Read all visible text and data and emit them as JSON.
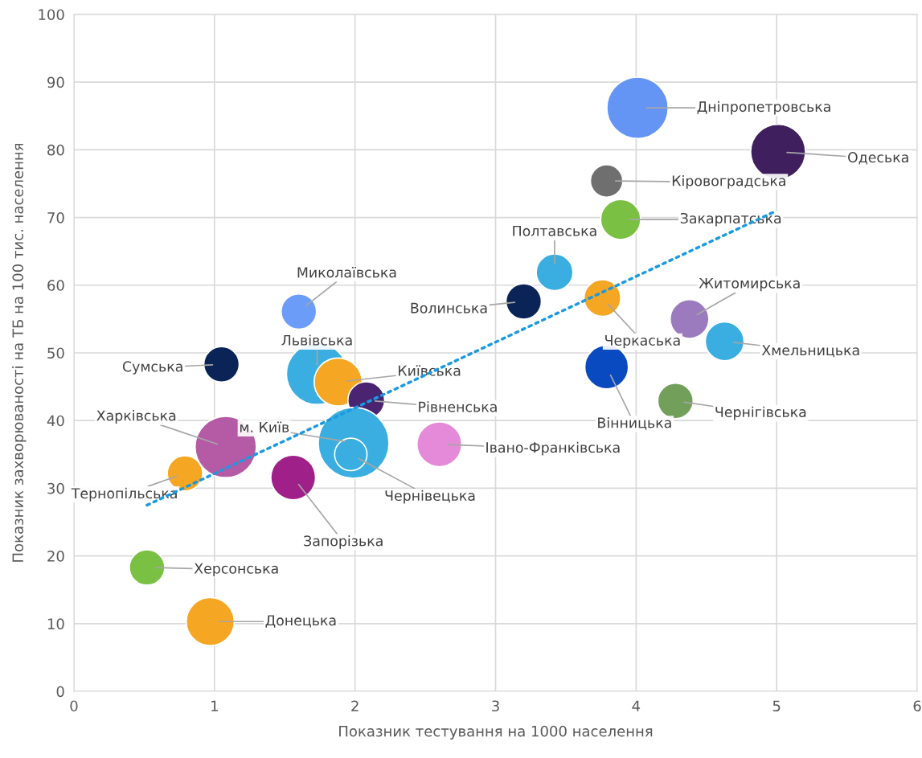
{
  "chart_data": {
    "type": "bubble",
    "xlabel": "Показник тестування на 1000 населення",
    "ylabel": "Показник захворюваності на ТБ на 100 тис. населення",
    "xlim": [
      0,
      6
    ],
    "xticks": [
      0,
      1,
      2,
      3,
      4,
      5,
      6
    ],
    "ylim": [
      0,
      100
    ],
    "yticks": [
      0,
      10,
      20,
      30,
      40,
      50,
      60,
      70,
      80,
      90,
      100
    ],
    "grid": true,
    "legend": false,
    "series": [
      {
        "name": "Дніпропетровська",
        "color": "#6495f5",
        "x": [
          4.01
        ],
        "values": [
          86.2
        ],
        "sizes": [
          0.75
        ]
      },
      {
        "name": "Одеська",
        "color": "#3f1f5e",
        "x": [
          5.01
        ],
        "values": [
          79.7
        ],
        "sizes": [
          0.6
        ]
      },
      {
        "name": "Кіровоградська",
        "color": "#6f6f6f",
        "x": [
          3.79
        ],
        "values": [
          75.4
        ],
        "sizes": [
          0.21
        ]
      },
      {
        "name": "Закарпатська",
        "color": "#7ac143",
        "x": [
          3.89
        ],
        "values": [
          69.7
        ],
        "sizes": [
          0.32
        ]
      },
      {
        "name": "Полтавська",
        "color": "#3aaee0",
        "x": [
          3.42
        ],
        "values": [
          61.9
        ],
        "sizes": [
          0.27
        ]
      },
      {
        "name": "Волинська",
        "color": "#0a2458",
        "x": [
          3.2
        ],
        "values": [
          57.6
        ],
        "sizes": [
          0.25
        ]
      },
      {
        "name": "Черкаська",
        "color": "#f5a623",
        "x": [
          3.76
        ],
        "values": [
          58.1
        ],
        "sizes": [
          0.27
        ]
      },
      {
        "name": "Житомирська",
        "color": "#9b7bbd",
        "x": [
          4.38
        ],
        "values": [
          55.0
        ],
        "sizes": [
          0.3
        ]
      },
      {
        "name": "Хмельницька",
        "color": "#3aaee0",
        "x": [
          4.63
        ],
        "values": [
          51.7
        ],
        "sizes": [
          0.3
        ]
      },
      {
        "name": "Вінницька",
        "color": "#0a4ac0",
        "x": [
          3.79
        ],
        "values": [
          47.9
        ],
        "sizes": [
          0.38
        ]
      },
      {
        "name": "Чернігівська",
        "color": "#72a05a",
        "x": [
          4.28
        ],
        "values": [
          42.9
        ],
        "sizes": [
          0.25
        ]
      },
      {
        "name": "Миколаївська",
        "color": "#6b9cf7",
        "x": [
          1.6
        ],
        "values": [
          56.1
        ],
        "sizes": [
          0.25
        ]
      },
      {
        "name": "Сумська",
        "color": "#0a2458",
        "x": [
          1.05
        ],
        "values": [
          48.3
        ],
        "sizes": [
          0.25
        ]
      },
      {
        "name": "Львівська",
        "color": "#3aaee0",
        "x": [
          1.73
        ],
        "values": [
          46.9
        ],
        "sizes": [
          0.75
        ]
      },
      {
        "name": "Київська",
        "color": "#f5a623",
        "x": [
          1.88
        ],
        "values": [
          45.7
        ],
        "sizes": [
          0.46
        ]
      },
      {
        "name": "Рівненська",
        "color": "#4a2470",
        "x": [
          2.08
        ],
        "values": [
          43.0
        ],
        "sizes": [
          0.27
        ]
      },
      {
        "name": "м. Київ",
        "color": "#3aaee0",
        "x": [
          1.99
        ],
        "values": [
          36.7
        ],
        "sizes": [
          1
        ]
      },
      {
        "name": "Чернівецька",
        "color": "#3aaee0",
        "x": [
          1.97
        ],
        "values": [
          35.0
        ],
        "sizes": [
          0.21
        ]
      },
      {
        "name": "Харківська",
        "color": "#b55aa5",
        "x": [
          1.08
        ],
        "values": [
          36.1
        ],
        "sizes": [
          0.75
        ]
      },
      {
        "name": "Тернопільська",
        "color": "#f5a623",
        "x": [
          0.79
        ],
        "values": [
          32.2
        ],
        "sizes": [
          0.25
        ]
      },
      {
        "name": "Запорізька",
        "color": "#a0208a",
        "x": [
          1.56
        ],
        "values": [
          31.6
        ],
        "sizes": [
          0.4
        ]
      },
      {
        "name": "Івано-Франківська",
        "color": "#e58ad8",
        "x": [
          2.6
        ],
        "values": [
          36.5
        ],
        "sizes": [
          0.4
        ]
      },
      {
        "name": "Херсонська",
        "color": "#7ac143",
        "x": [
          0.52
        ],
        "values": [
          18.3
        ],
        "sizes": [
          0.25
        ]
      },
      {
        "name": "Донецька",
        "color": "#f5a623",
        "x": [
          0.97
        ],
        "values": [
          10.3
        ],
        "sizes": [
          0.46
        ]
      },
      {
        "type": "line",
        "color": "#1a9ae0",
        "line_style": "dotted",
        "x": [
          0.52,
          5.0
        ],
        "values": [
          27.5,
          71.0
        ]
      }
    ]
  }
}
